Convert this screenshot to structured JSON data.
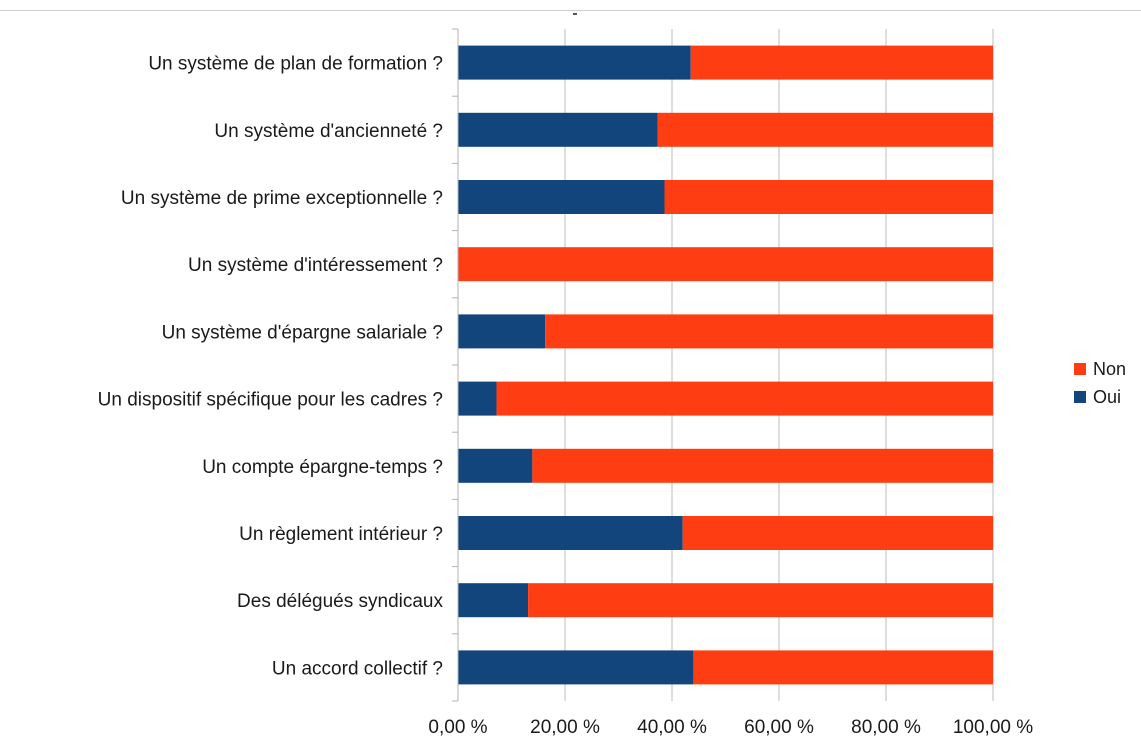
{
  "chart_data": {
    "type": "bar",
    "orientation": "horizontal",
    "stacked": "percent",
    "categories": [
      "Un système de plan de formation ?",
      "Un système d'ancienneté ?",
      "Un système de prime exceptionnelle ?",
      "Un système d'intéressement ?",
      "Un système d'épargne salariale ?",
      "Un dispositif spécifique pour les cadres ?",
      "Un compte épargne-temps ?",
      "Un règlement intérieur ?",
      "Des délégués syndicaux",
      "Un accord collectif ?"
    ],
    "series": [
      {
        "name": "Oui",
        "color": "#13457d",
        "values": [
          43.5,
          37.3,
          38.6,
          0.0,
          16.3,
          7.2,
          13.9,
          42.0,
          13.1,
          44.0
        ]
      },
      {
        "name": "Non",
        "color": "#ff3d12",
        "values": [
          56.5,
          62.7,
          61.4,
          100.0,
          83.7,
          92.8,
          86.1,
          58.0,
          86.9,
          56.0
        ]
      }
    ],
    "xlim": [
      0,
      100
    ],
    "x_ticks": [
      "0,00 %",
      "20,00 %",
      "40,00 %",
      "60,00 %",
      "80,00 %",
      "100,00 %"
    ],
    "grid": "vertical",
    "legend": {
      "position": "right",
      "entries": [
        "Non",
        "Oui"
      ]
    },
    "title": "",
    "xlabel": "",
    "ylabel": ""
  }
}
